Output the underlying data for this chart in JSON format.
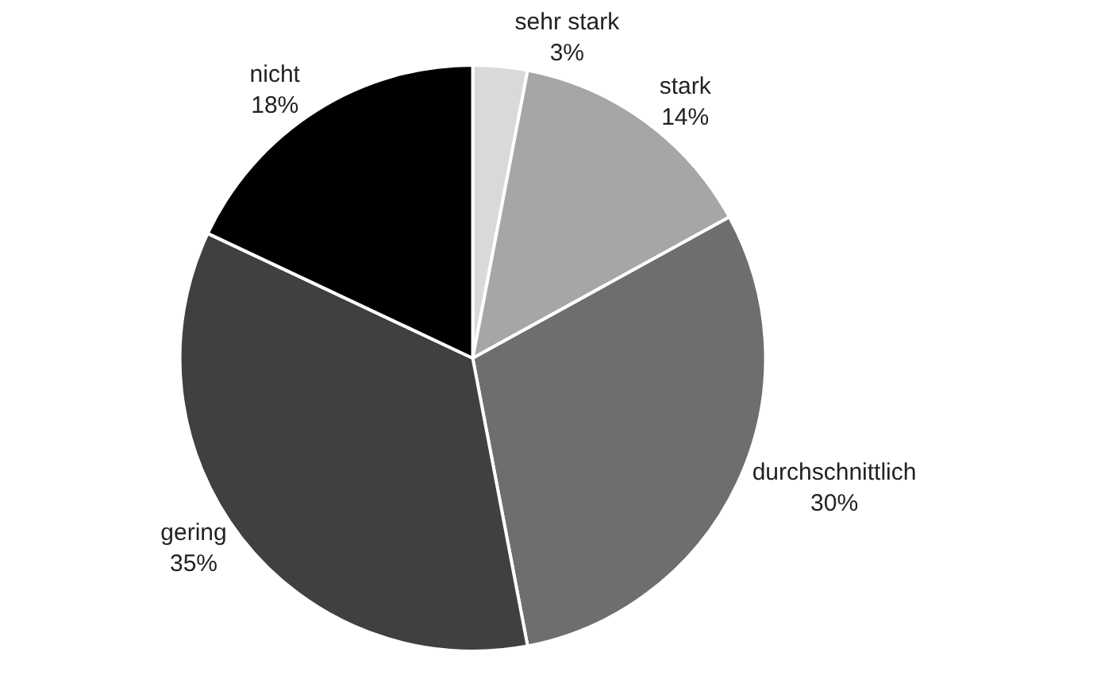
{
  "chart_data": {
    "type": "pie",
    "categories": [
      "sehr stark",
      "stark",
      "durchschnittlich",
      "gering",
      "nicht"
    ],
    "values": [
      3,
      14,
      30,
      35,
      18
    ],
    "value_labels": [
      "3%",
      "14%",
      "30%",
      "35%",
      "18%"
    ],
    "colors": [
      "#d9d9d9",
      "#a6a6a6",
      "#6e6e6e",
      "#404040",
      "#000000"
    ],
    "legend": false
  }
}
